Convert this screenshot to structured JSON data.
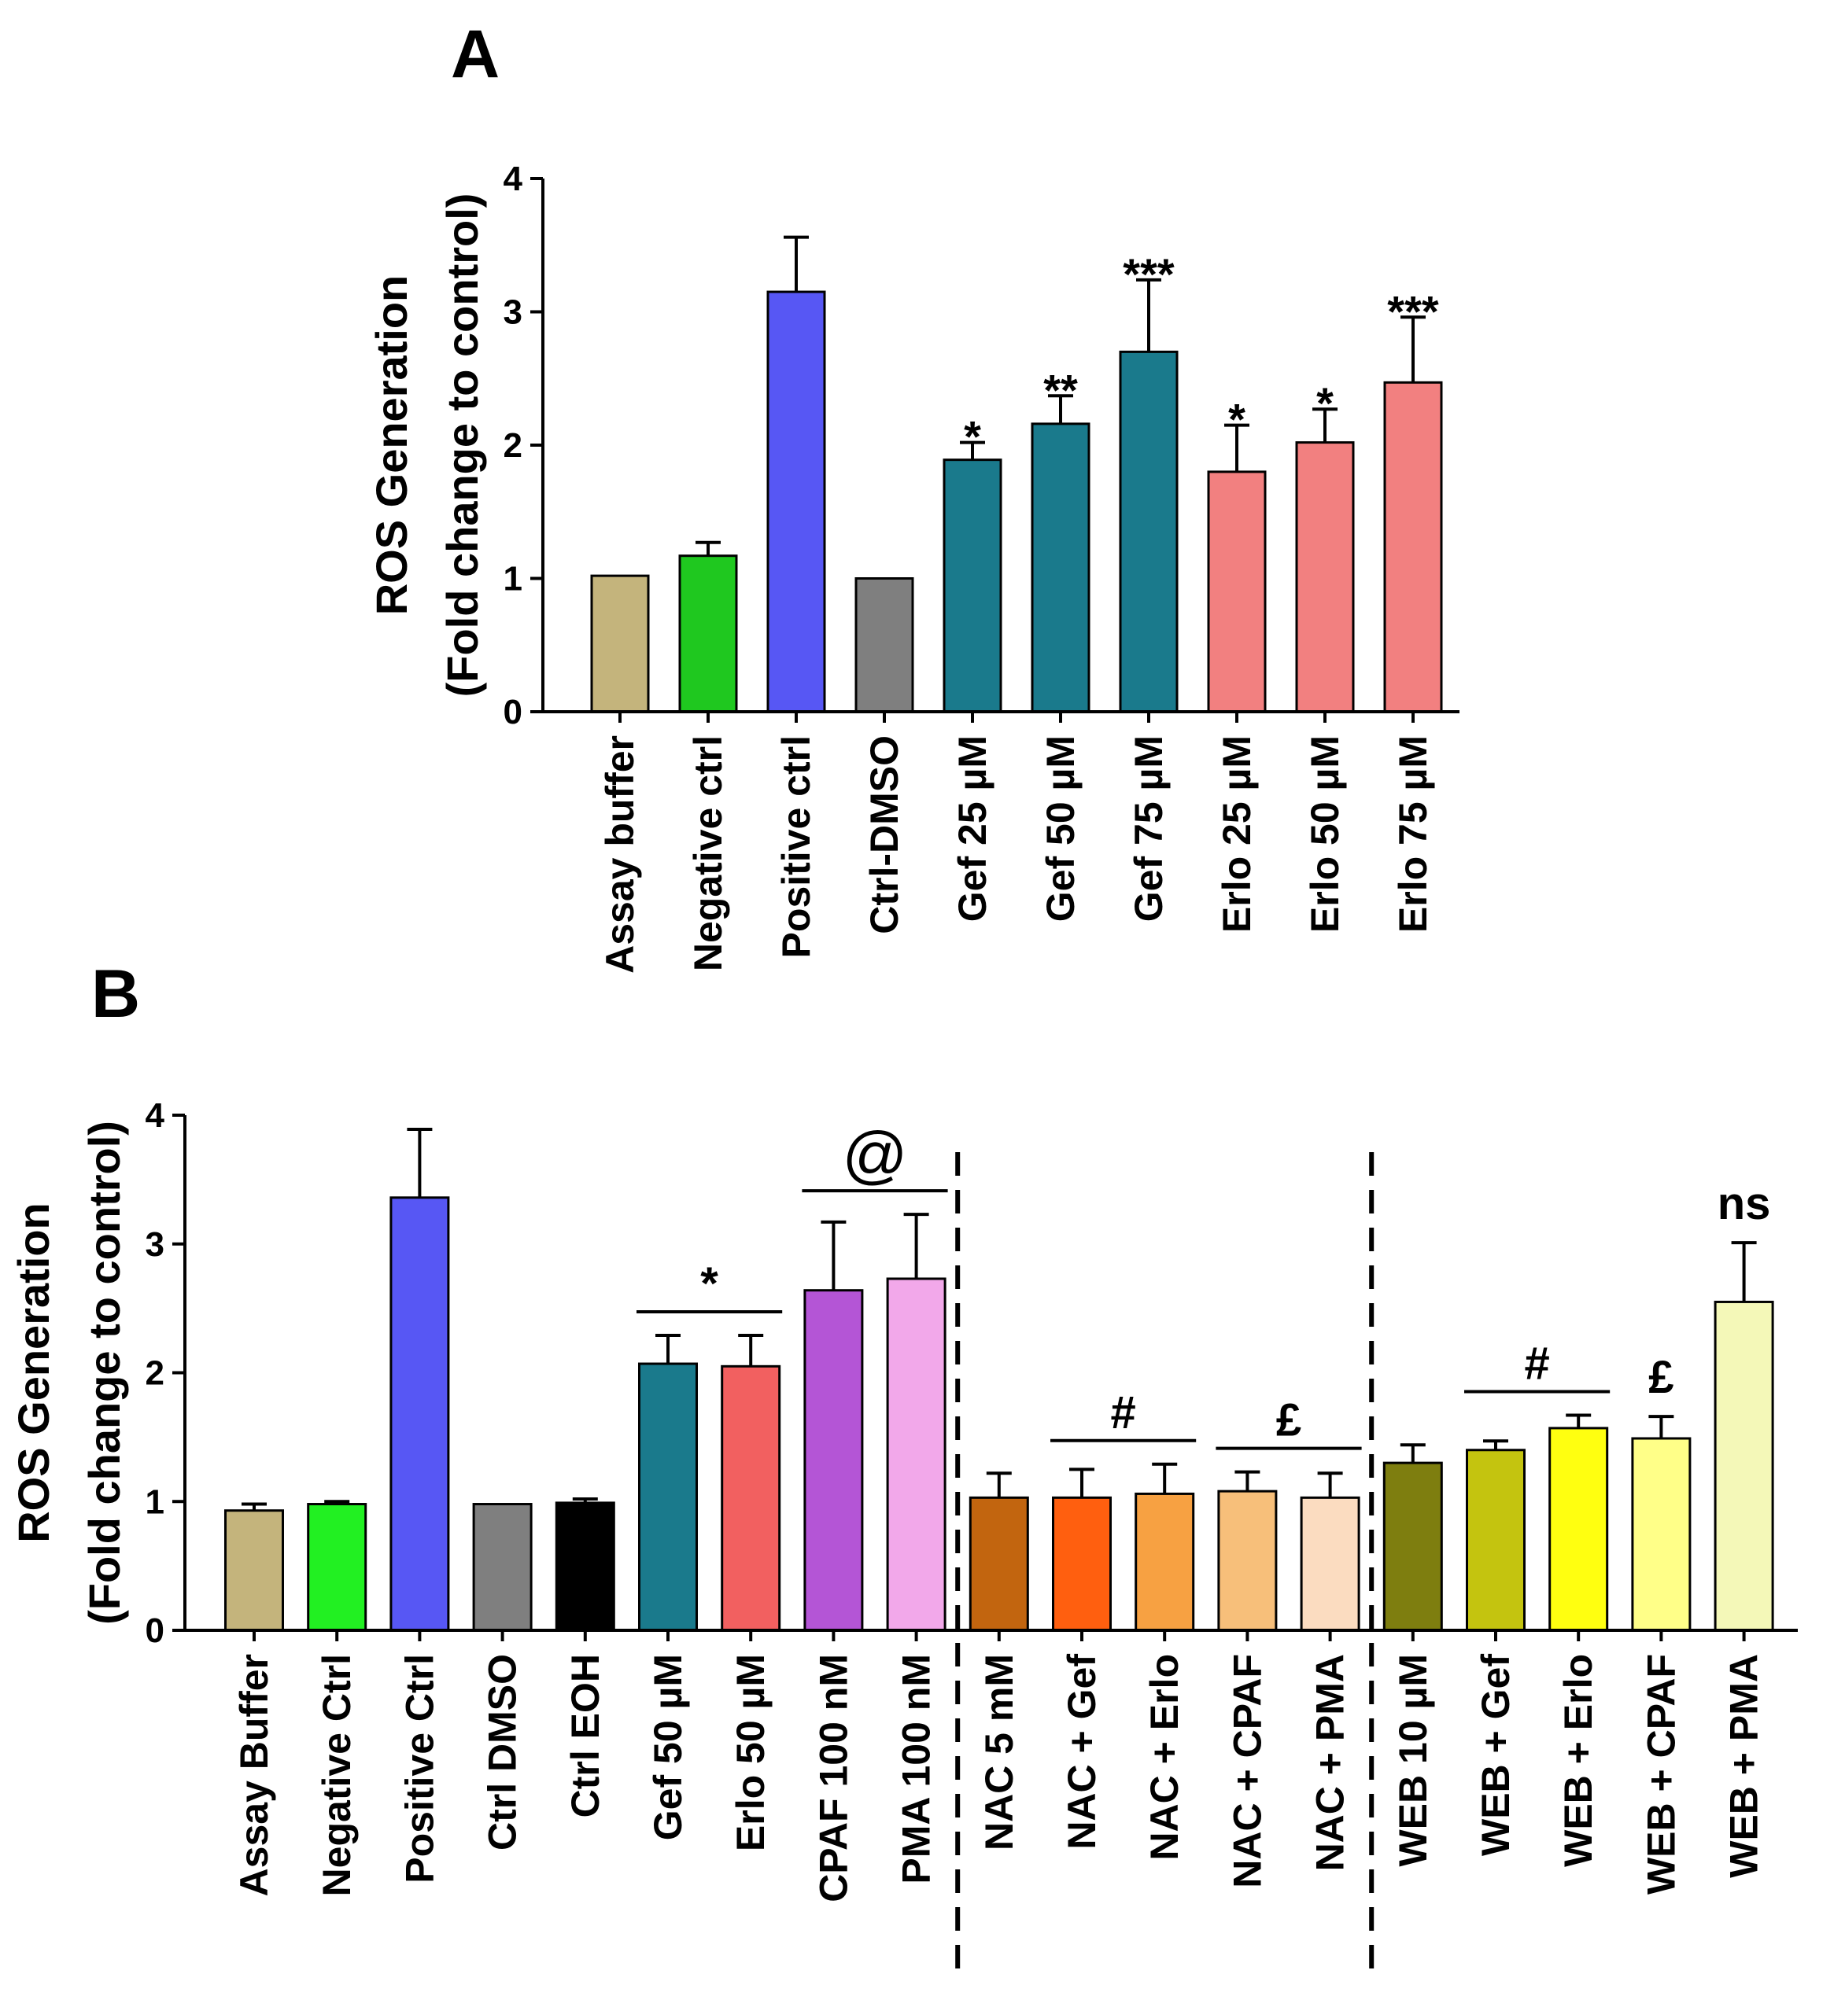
{
  "chart_data": [
    {
      "panel": "A",
      "type": "bar",
      "ylabel": [
        "ROS Generation",
        "(Fold change to control)"
      ],
      "ylim": [
        0,
        4
      ],
      "yticks": [
        0,
        1,
        2,
        3,
        4
      ],
      "categories": [
        "Assay buffer",
        "Negative ctrl",
        "Positive ctrl",
        "Ctrl-DMSO",
        "Gef 25 µM",
        "Gef 50 µM",
        "Gef 75 µM",
        "Erlo 25 µM",
        "Erlo 50 µM",
        "Erlo 75 µM"
      ],
      "values": [
        1.02,
        1.17,
        3.15,
        1.0,
        1.89,
        2.16,
        2.7,
        1.8,
        2.02,
        2.47
      ],
      "errors": [
        0.0,
        0.1,
        0.41,
        0.0,
        0.13,
        0.21,
        0.54,
        0.35,
        0.25,
        0.49
      ],
      "colors": [
        "#c4b47c",
        "#1fc81f",
        "#5757f4",
        "#7f7f7f",
        "#1a7a8c",
        "#1a7a8c",
        "#1a7a8c",
        "#f28080",
        "#f28080",
        "#f28080"
      ],
      "significance": [
        "",
        "",
        "",
        "",
        "*",
        "**",
        "***",
        "*",
        "*",
        "***"
      ]
    },
    {
      "panel": "B",
      "type": "bar",
      "ylabel": [
        "ROS Generation",
        "(Fold change to control)"
      ],
      "ylim": [
        0,
        4
      ],
      "yticks": [
        0,
        1,
        2,
        3,
        4
      ],
      "categories": [
        "Assay Buffer",
        "Negative Ctrl",
        "Positive Ctrl",
        "Ctrl DMSO",
        "Ctrl EOH",
        "Gef 50 µM",
        "Erlo 50 µM",
        "CPAF 100 nM",
        "PMA 100 nM",
        "NAC 5 mM",
        "NAC + Gef",
        "NAC + Erlo",
        "NAC + CPAF",
        "NAC + PMA",
        "WEB 10 µM",
        "WEB + Gef",
        "WEB + Erlo",
        "WEB + CPAF",
        "WEB + PMA"
      ],
      "values": [
        0.93,
        0.98,
        3.36,
        0.98,
        0.99,
        2.07,
        2.05,
        2.64,
        2.73,
        1.03,
        1.03,
        1.06,
        1.08,
        1.03,
        1.3,
        1.4,
        1.57,
        1.49,
        2.55
      ],
      "errors": [
        0.05,
        0.02,
        0.53,
        0.0,
        0.03,
        0.22,
        0.24,
        0.53,
        0.5,
        0.19,
        0.22,
        0.23,
        0.15,
        0.19,
        0.14,
        0.07,
        0.1,
        0.17,
        0.46
      ],
      "colors": [
        "#c4b47c",
        "#22f022",
        "#5757f4",
        "#7f7f7f",
        "#000000",
        "#1a7a8c",
        "#f26060",
        "#b455d6",
        "#f2a8ea",
        "#c2650f",
        "#ff5f0f",
        "#f7a142",
        "#f7bf7a",
        "#fbdcc0",
        "#7e7e0f",
        "#c4c40f",
        "#ffff10",
        "#ffff88",
        "#f4f8b8"
      ],
      "group_annotations": [
        {
          "from": 5,
          "to": 6,
          "label": "*"
        },
        {
          "from": 7,
          "to": 8,
          "label": "@"
        },
        {
          "from": 10,
          "to": 11,
          "label": "#"
        },
        {
          "from": 12,
          "to": 13,
          "label": "£"
        },
        {
          "from": 15,
          "to": 16,
          "label": "#"
        }
      ],
      "bar_annotations": [
        {
          "index": 17,
          "label": "£"
        },
        {
          "index": 18,
          "label": "ns"
        }
      ],
      "dashed_separators_after": [
        8,
        13
      ]
    }
  ],
  "labels": {
    "panel_a": "A",
    "panel_b": "B"
  }
}
